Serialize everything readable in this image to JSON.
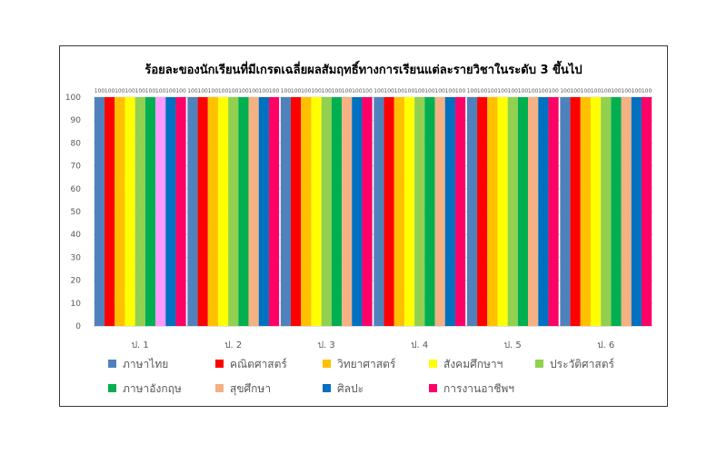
{
  "chart_data": {
    "type": "bar",
    "title": "ร้อยละของนักเรียนที่มีเกรดเฉลี่ยผลสัมฤทธิ์ทางการเรียนแต่ละรายวิชาในระดับ 3 ขึ้นไป",
    "xlabel": "",
    "ylabel": "",
    "ylim": [
      0,
      100
    ],
    "yticks": [
      0,
      10,
      20,
      30,
      40,
      50,
      60,
      70,
      80,
      90,
      100
    ],
    "grid": true,
    "legend_position": "bottom",
    "categories": [
      "ป. 1",
      "ป. 2",
      "ป. 3",
      "ป. 4",
      "ป. 5",
      "ป. 6"
    ],
    "series": [
      {
        "name": "ภาษาไทย",
        "color": "#4F81BD",
        "values": [
          100,
          100,
          100,
          100,
          100,
          100
        ]
      },
      {
        "name": "คณิตศาสตร์",
        "color": "#FF0000",
        "values": [
          100,
          100,
          100,
          100,
          100,
          100
        ]
      },
      {
        "name": "วิทยาศาสตร์",
        "color": "#FFC000",
        "values": [
          100,
          100,
          100,
          100,
          100,
          100
        ]
      },
      {
        "name": "สังคมศึกษาฯ",
        "color": "#FFFF00",
        "values": [
          100,
          100,
          100,
          100,
          100,
          100
        ]
      },
      {
        "name": "ประวัติศาสตร์",
        "color": "#92D050",
        "values": [
          100,
          100,
          100,
          100,
          100,
          100
        ]
      },
      {
        "name": "ภาษาอังกฤษ",
        "color": "#00B050",
        "values": [
          100,
          100,
          100,
          100,
          100,
          100
        ]
      },
      {
        "name": "สุขศึกษา",
        "color": "#F4B183",
        "values": [
          100,
          100,
          100,
          100,
          100,
          100
        ]
      },
      {
        "name": "ศิลปะ",
        "color": "#0070C0",
        "values": [
          100,
          100,
          100,
          100,
          100,
          100
        ]
      },
      {
        "name": "การงานอาชีพฯ",
        "color": "#FF0066",
        "values": [
          100,
          100,
          100,
          100,
          100,
          100
        ]
      }
    ],
    "overrides": [
      {
        "category_index": 0,
        "series_index": 6,
        "color": "#FF99FF"
      }
    ]
  }
}
